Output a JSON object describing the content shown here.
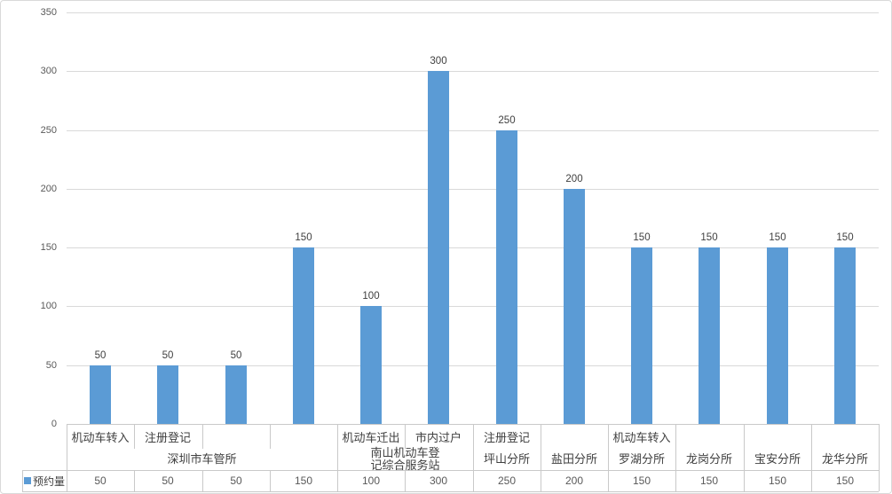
{
  "chart_data": {
    "type": "bar",
    "title": "",
    "series": [
      {
        "name": "预约量",
        "values": [
          50,
          50,
          50,
          150,
          100,
          300,
          250,
          200,
          150,
          150,
          150,
          150
        ]
      }
    ],
    "categories_level1": [
      "机动车转入",
      "注册登记",
      "",
      "",
      "机动车迁出",
      "市内过户",
      "注册登记",
      "",
      "机动车转入",
      "",
      "",
      ""
    ],
    "groups": [
      {
        "label": "深圳市车管所",
        "span": 4
      },
      {
        "label": "南山机动车登记综合服务站",
        "span": 2
      },
      {
        "label": "坪山分所",
        "span": 1
      },
      {
        "label": "盐田分所",
        "span": 1
      },
      {
        "label": "罗湖分所",
        "span": 1
      },
      {
        "label": "龙岗分所",
        "span": 1
      },
      {
        "label": "宝安分所",
        "span": 1
      },
      {
        "label": "龙华分所",
        "span": 1
      }
    ],
    "yticks": [
      0,
      50,
      100,
      150,
      200,
      250,
      300,
      350
    ],
    "ylim": [
      0,
      350
    ],
    "grid": true,
    "data_labels": true,
    "legend_position": "bottom-left-table",
    "table_values": [
      50,
      50,
      50,
      150,
      100,
      300,
      250,
      200,
      150,
      150,
      150,
      150
    ],
    "colors": {
      "bar": "#5B9BD5",
      "gridline": "#D9D9D9",
      "table_line": "#C9C9C9",
      "axis_text": "#595959",
      "label_text": "#404040"
    }
  }
}
